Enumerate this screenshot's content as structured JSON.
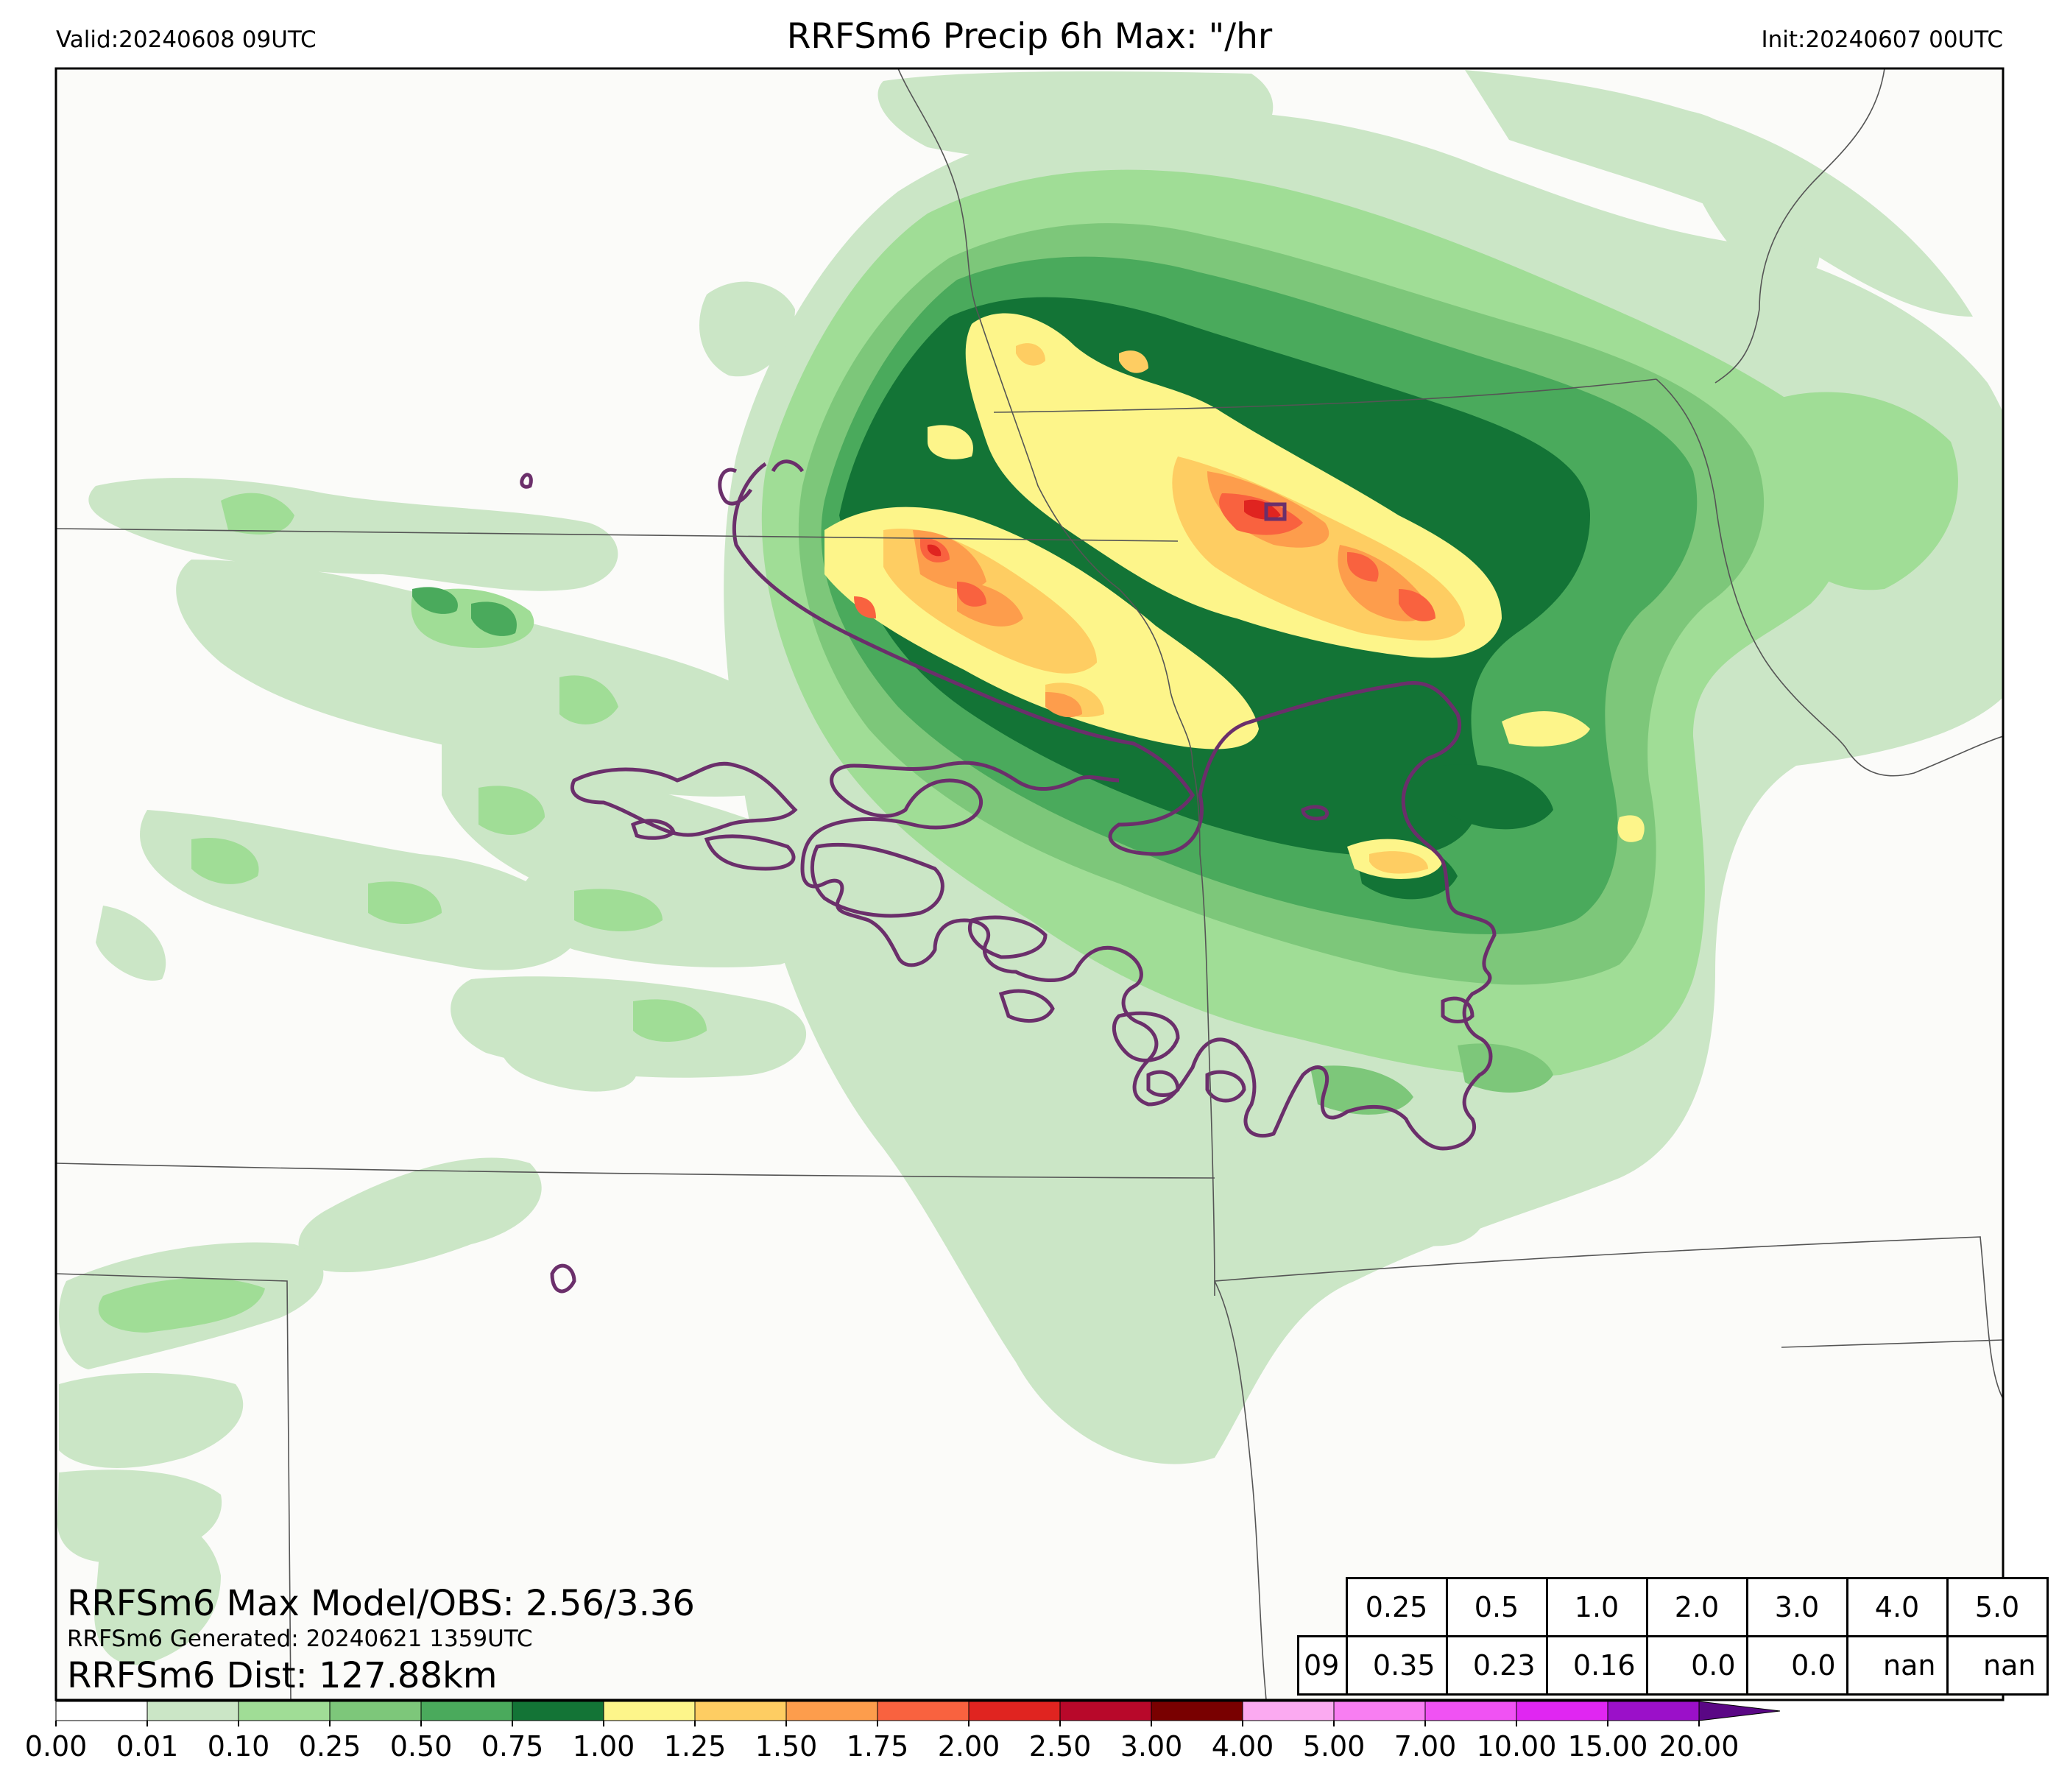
{
  "header": {
    "valid": "Valid:20240608 09UTC",
    "title": "RRFSm6 Precip 6h Max: \"/hr",
    "init": "Init:20240607 00UTC"
  },
  "stats": {
    "max_model_obs": "RRFSm6 Max Model/OBS: 2.56/3.36",
    "generated": "RRFSm6 Generated: 20240621 1359UTC",
    "dist": "RRFSm6 Dist: 127.88km"
  },
  "threshold_table": {
    "thresholds": [
      "0.25",
      "0.5",
      "1.0",
      "2.0",
      "3.0",
      "4.0",
      "5.0"
    ],
    "row_label": "09",
    "values": [
      "0.35",
      "0.23",
      "0.16",
      "0.0",
      "0.0",
      "nan",
      "nan"
    ]
  },
  "colorbar": {
    "ticks": [
      "0.00",
      "0.01",
      "0.10",
      "0.25",
      "0.50",
      "0.75",
      "1.00",
      "1.25",
      "1.50",
      "1.75",
      "2.00",
      "2.50",
      "3.00",
      "4.00",
      "5.00",
      "7.00",
      "10.00",
      "15.00",
      "20.00"
    ],
    "colors": [
      "#ffffff",
      "#cbe6c6",
      "#a0dd96",
      "#7dc77a",
      "#4aaa5c",
      "#137436",
      "#fdf58a",
      "#fecd62",
      "#fd9d4c",
      "#f9623f",
      "#e02420",
      "#b8082a",
      "#790000",
      "#fbaaf1",
      "#f87ef2",
      "#f052f3",
      "#e026f2",
      "#9b10c9"
    ],
    "extend_color": "#5a0785"
  },
  "map_colors": {
    "background": "#fbfbf9",
    "border_line": "#555555",
    "observed_contour": "#6b2f6b"
  }
}
